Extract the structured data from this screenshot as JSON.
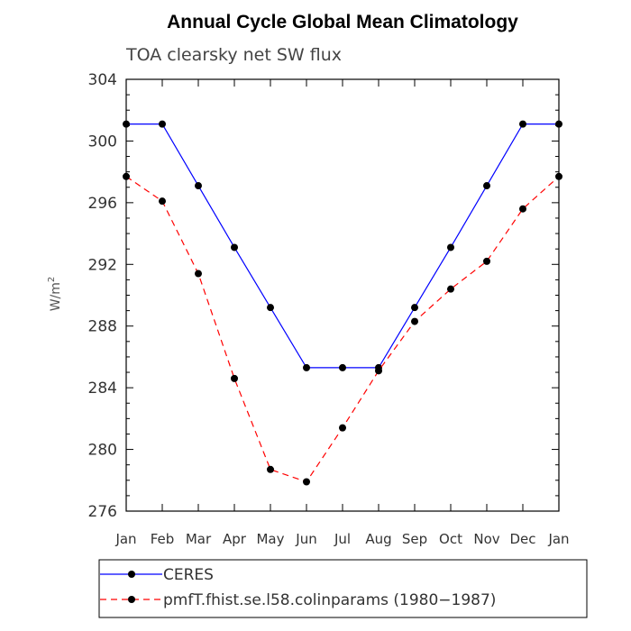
{
  "chart_data": {
    "type": "line",
    "title": "Annual Cycle Global Mean Climatology",
    "subtitle": "TOA clearsky net SW flux",
    "ylabel_base": "W/m",
    "ylabel_sup": "2",
    "categories": [
      "Jan",
      "Feb",
      "Mar",
      "Apr",
      "May",
      "Jun",
      "Jul",
      "Aug",
      "Sep",
      "Oct",
      "Nov",
      "Dec",
      "Jan"
    ],
    "ylim": [
      276,
      304
    ],
    "yticks": [
      276,
      280,
      284,
      288,
      292,
      296,
      300,
      304
    ],
    "series": [
      {
        "name": "CERES",
        "color": "#0000ff",
        "dash": "solid",
        "values": [
          301.1,
          301.1,
          297.1,
          293.1,
          289.2,
          285.3,
          285.3,
          285.3,
          289.2,
          293.1,
          297.1,
          301.1,
          301.1
        ]
      },
      {
        "name": "pmfT.fhist.se.l58.colinparams (1980−1987)",
        "color": "#ff0000",
        "dash": "dashed",
        "values": [
          297.7,
          296.1,
          291.4,
          284.6,
          278.7,
          277.9,
          281.4,
          285.1,
          288.3,
          290.4,
          292.2,
          295.6,
          297.7
        ]
      }
    ],
    "legend_position": "bottom"
  }
}
